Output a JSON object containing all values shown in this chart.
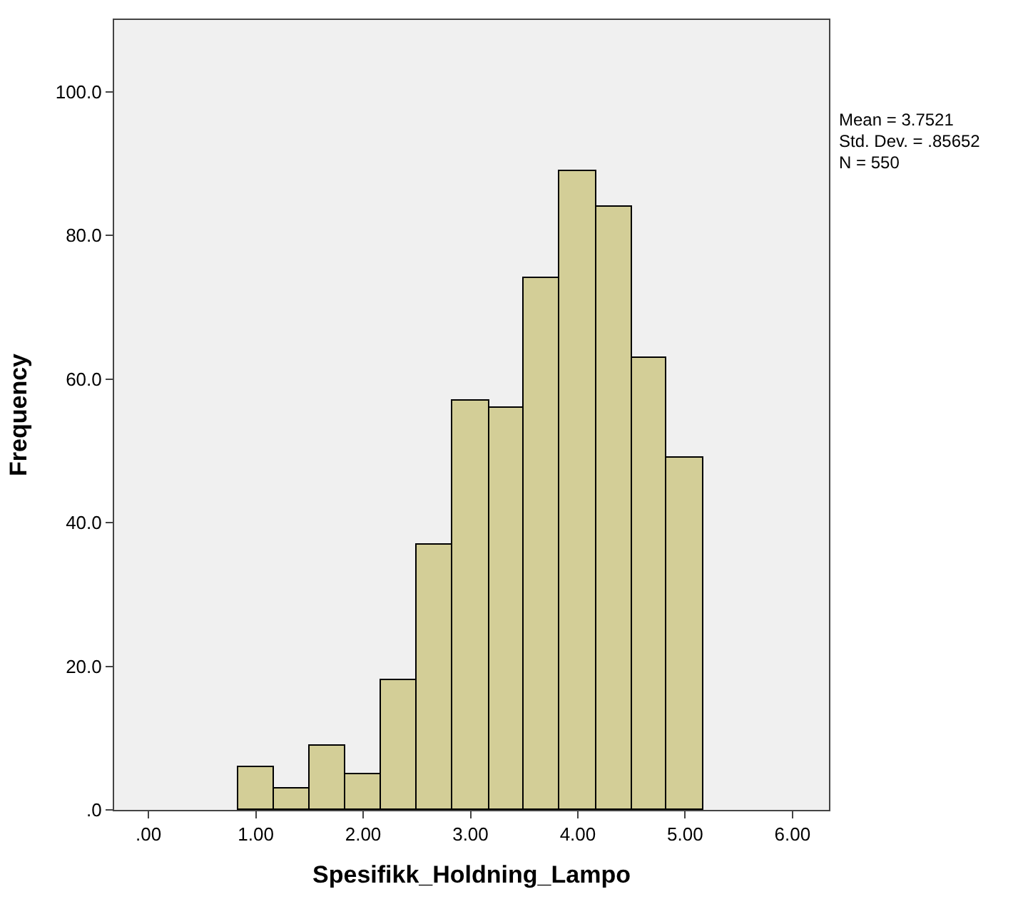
{
  "chart_data": {
    "type": "histogram",
    "xlabel": "Spesifikk_Holdning_Lampo",
    "ylabel": "Frequency",
    "bins": [
      0.83,
      1.17,
      1.5,
      1.83,
      2.17,
      2.5,
      2.83,
      3.17,
      3.5,
      3.83,
      4.17,
      4.5,
      4.83,
      5.17
    ],
    "values": [
      6,
      3,
      9,
      5,
      18,
      37,
      57,
      56,
      74,
      89,
      84,
      63,
      49
    ],
    "color": "#d3ce97",
    "xlim": [
      -0.32,
      6.34
    ],
    "ylim": [
      0,
      110
    ],
    "xticks": [
      {
        "value": 0,
        "label": ".00"
      },
      {
        "value": 1,
        "label": "1.00"
      },
      {
        "value": 2,
        "label": "2.00"
      },
      {
        "value": 3,
        "label": "3.00"
      },
      {
        "value": 4,
        "label": "4.00"
      },
      {
        "value": 5,
        "label": "5.00"
      },
      {
        "value": 6,
        "label": "6.00"
      }
    ],
    "yticks": [
      {
        "value": 0,
        "label": ".0"
      },
      {
        "value": 20,
        "label": "20.0"
      },
      {
        "value": 40,
        "label": "40.0"
      },
      {
        "value": 60,
        "label": "60.0"
      },
      {
        "value": 80,
        "label": "80.0"
      },
      {
        "value": 100,
        "label": "100.0"
      }
    ],
    "annotations": [
      "Mean = 3.7521",
      "Std. Dev. = .85652",
      "N = 550"
    ]
  }
}
